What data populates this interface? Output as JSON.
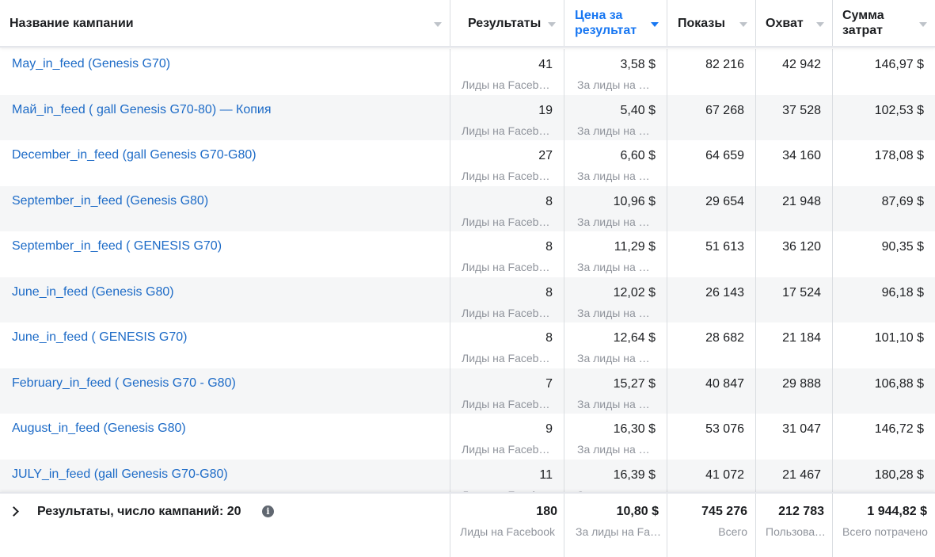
{
  "columns": {
    "name": "Название кампании",
    "results": "Результаты",
    "price": "Цена за результат",
    "impressions": "Показы",
    "reach": "Охват",
    "spend": "Сумма затрат"
  },
  "rows": [
    {
      "name": "May_in_feed (Genesis G70)",
      "results": "41",
      "results_sub": "Лиды на Facebook",
      "price": "3,58 $",
      "price_sub": "За лиды на Facebook",
      "impressions": "82 216",
      "reach": "42 942",
      "spend": "146,97 $"
    },
    {
      "name": "Май_in_feed ( gall Genesis G70-80) — Копия",
      "results": "19",
      "results_sub": "Лиды на Facebook",
      "price": "5,40 $",
      "price_sub": "За лиды на Facebook",
      "impressions": "67 268",
      "reach": "37 528",
      "spend": "102,53 $"
    },
    {
      "name": "December_in_feed (gall Genesis G70-G80)",
      "results": "27",
      "results_sub": "Лиды на Facebook",
      "price": "6,60 $",
      "price_sub": "За лиды на Facebook",
      "impressions": "64 659",
      "reach": "34 160",
      "spend": "178,08 $"
    },
    {
      "name": "September_in_feed (Genesis G80)",
      "results": "8",
      "results_sub": "Лиды на Facebook",
      "price": "10,96 $",
      "price_sub": "За лиды на Facebook",
      "impressions": "29 654",
      "reach": "21 948",
      "spend": "87,69 $"
    },
    {
      "name": "September_in_feed ( GENESIS G70)",
      "results": "8",
      "results_sub": "Лиды на Facebook",
      "price": "11,29 $",
      "price_sub": "За лиды на Facebook",
      "impressions": "51 613",
      "reach": "36 120",
      "spend": "90,35 $"
    },
    {
      "name": "June_in_feed (Genesis G80)",
      "results": "8",
      "results_sub": "Лиды на Facebook",
      "price": "12,02 $",
      "price_sub": "За лиды на Facebook",
      "impressions": "26 143",
      "reach": "17 524",
      "spend": "96,18 $"
    },
    {
      "name": "June_in_feed ( GENESIS G70)",
      "results": "8",
      "results_sub": "Лиды на Facebook",
      "price": "12,64 $",
      "price_sub": "За лиды на Facebook",
      "impressions": "28 682",
      "reach": "21 184",
      "spend": "101,10 $"
    },
    {
      "name": "February_in_feed ( Genesis G70 - G80)",
      "results": "7",
      "results_sub": "Лиды на Facebook",
      "price": "15,27 $",
      "price_sub": "За лиды на Facebook",
      "impressions": "40 847",
      "reach": "29 888",
      "spend": "106,88 $"
    },
    {
      "name": "August_in_feed (Genesis G80)",
      "results": "9",
      "results_sub": "Лиды на Facebook",
      "price": "16,30 $",
      "price_sub": "За лиды на Facebook",
      "impressions": "53 076",
      "reach": "31 047",
      "spend": "146,72 $"
    },
    {
      "name": "JULY_in_feed (gall Genesis G70-G80)",
      "results": "11",
      "results_sub": "Лиды на Facebook",
      "price": "16,39 $",
      "price_sub": "За лиды на Facebook",
      "impressions": "41 072",
      "reach": "21 467",
      "spend": "180,28 $"
    }
  ],
  "totals": {
    "label": "Результаты, число кампаний: 20",
    "info_icon": "info-icon",
    "results": "180",
    "results_sub": "Лиды на Facebook",
    "price": "10,80 $",
    "price_sub": "За лиды на Facebook",
    "impressions": "745 276",
    "impressions_sub": "Всего",
    "reach": "212 783",
    "reach_sub": "Пользователи",
    "spend": "1 944,82 $",
    "spend_sub": "Всего потрачено"
  },
  "colors": {
    "link": "#1d6bc7",
    "active_sort": "#1877f2",
    "row_alt": "#f5f6f7",
    "muted": "#90949c"
  }
}
